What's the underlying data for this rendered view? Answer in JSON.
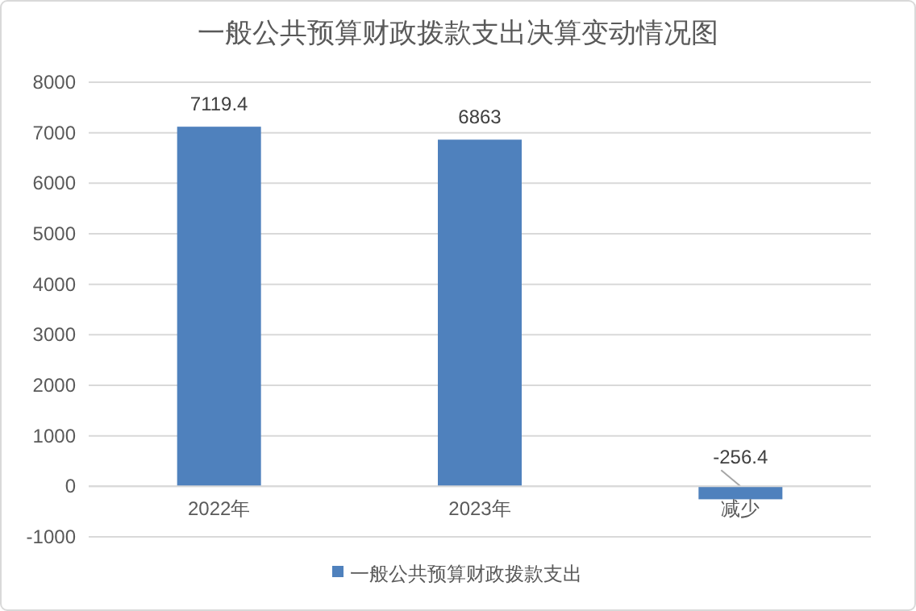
{
  "chart_data": {
    "type": "bar",
    "title": "一般公共预算财政拨款支出决算变动情况图",
    "categories": [
      "2022年",
      "2023年",
      "减少"
    ],
    "series": [
      {
        "name": "一般公共预算财政拨款支出",
        "color": "#4f81bd",
        "values": [
          7119.4,
          6863,
          -256.4
        ]
      }
    ],
    "ylim": [
      -1000,
      8000
    ],
    "yticks": [
      -1000,
      0,
      1000,
      2000,
      3000,
      4000,
      5000,
      6000,
      7000,
      8000
    ],
    "grid": "y",
    "legend": "bottom",
    "data_labels": true
  }
}
